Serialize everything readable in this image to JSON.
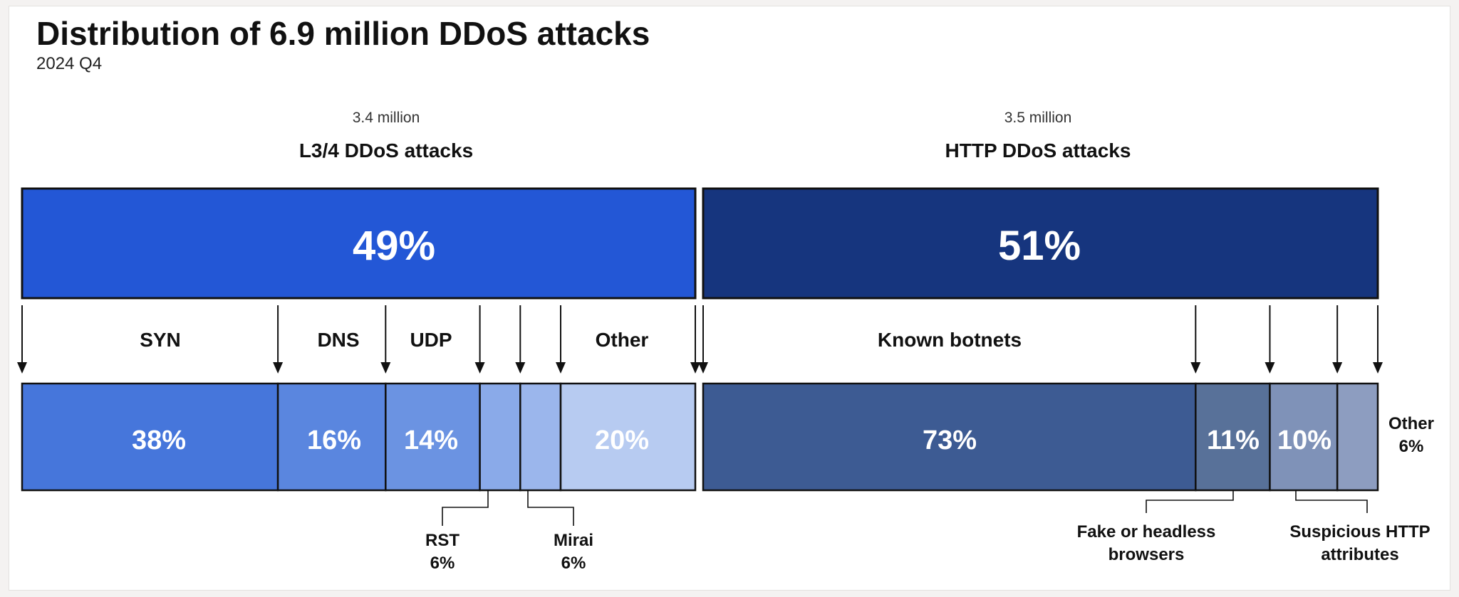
{
  "chart_data": {
    "type": "bar",
    "title": "Distribution of 6.9 million DDoS attacks",
    "subtitle": "2024 Q4",
    "colors": {
      "l34_top": "#2357d6",
      "http_top": "#16357e",
      "syn": "#4676db",
      "dns": "#5a86df",
      "udp": "#6b93e2",
      "rst": "#8aaae9",
      "mirai": "#9bb6ec",
      "l34_other": "#b7cbf1",
      "known_botnets": "#3d5b93",
      "fake_headless": "#587199",
      "suspicious_http": "#7f92b8",
      "http_other": "#8d9dc0",
      "border": "#111111"
    },
    "groups": [
      {
        "id": "l34",
        "count_label": "3.4 million",
        "name": "L3/4 DDoS attacks",
        "share": 49,
        "share_label": "49%",
        "segments": [
          {
            "id": "syn",
            "name": "SYN",
            "value": 38,
            "label": "38%",
            "color_key": "syn"
          },
          {
            "id": "dns",
            "name": "DNS",
            "value": 16,
            "label": "16%",
            "color_key": "dns"
          },
          {
            "id": "udp",
            "name": "UDP",
            "value": 14,
            "label": "14%",
            "color_key": "udp"
          },
          {
            "id": "rst",
            "name": "RST",
            "value": 6,
            "label": "6%",
            "color_key": "rst"
          },
          {
            "id": "mirai",
            "name": "Mirai",
            "value": 6,
            "label": "6%",
            "color_key": "mirai"
          },
          {
            "id": "l34-other",
            "name": "Other",
            "value": 20,
            "label": "20%",
            "color_key": "l34_other"
          }
        ]
      },
      {
        "id": "http",
        "count_label": "3.5 million",
        "name": "HTTP DDoS attacks",
        "share": 51,
        "share_label": "51%",
        "segments": [
          {
            "id": "known-botnets",
            "name": "Known botnets",
            "value": 73,
            "label": "73%",
            "color_key": "known_botnets"
          },
          {
            "id": "fake-headless",
            "name": "Fake or headless browsers",
            "value": 11,
            "label": "11%",
            "color_key": "fake_headless"
          },
          {
            "id": "suspicious-http",
            "name": "Suspicious HTTP attributes",
            "value": 10,
            "label": "10%",
            "color_key": "suspicious_http"
          },
          {
            "id": "http-other",
            "name": "Other",
            "value": 6,
            "label": "6%",
            "color_key": "http_other"
          }
        ]
      }
    ]
  },
  "labels": {
    "syn": "SYN",
    "dns": "DNS",
    "udp": "UDP",
    "l34_other": "Other",
    "known_botnets": "Known botnets",
    "rst_name": "RST",
    "rst_value": "6%",
    "mirai_name": "Mirai",
    "mirai_value": "6%",
    "fake_line1": "Fake or headless",
    "fake_line2": "browsers",
    "susp_line1": "Suspicious HTTP",
    "susp_line2": "attributes",
    "http_other_name": "Other",
    "http_other_value": "6%"
  }
}
